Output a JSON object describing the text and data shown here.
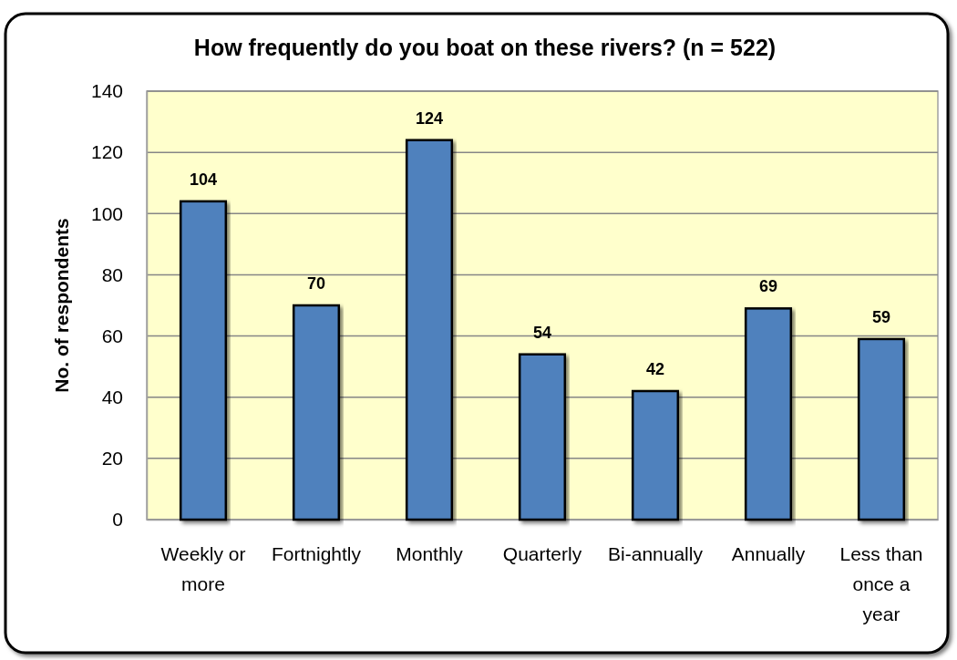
{
  "chart_data": {
    "type": "bar",
    "title": "How frequently do you boat on these rivers? (n = 522)",
    "ylabel": "No. of respondents",
    "categories": [
      "Weekly or more",
      "Fortnightly",
      "Monthly",
      "Quarterly",
      "Bi-annually",
      "Annually",
      "Less than once a year"
    ],
    "values": [
      104,
      70,
      124,
      54,
      42,
      69,
      59
    ],
    "color": "#4f81bd",
    "ylim": [
      0,
      140
    ],
    "yticks": [
      0,
      20,
      40,
      60,
      80,
      100,
      120,
      140
    ],
    "grid": "y",
    "data_labels": true
  }
}
